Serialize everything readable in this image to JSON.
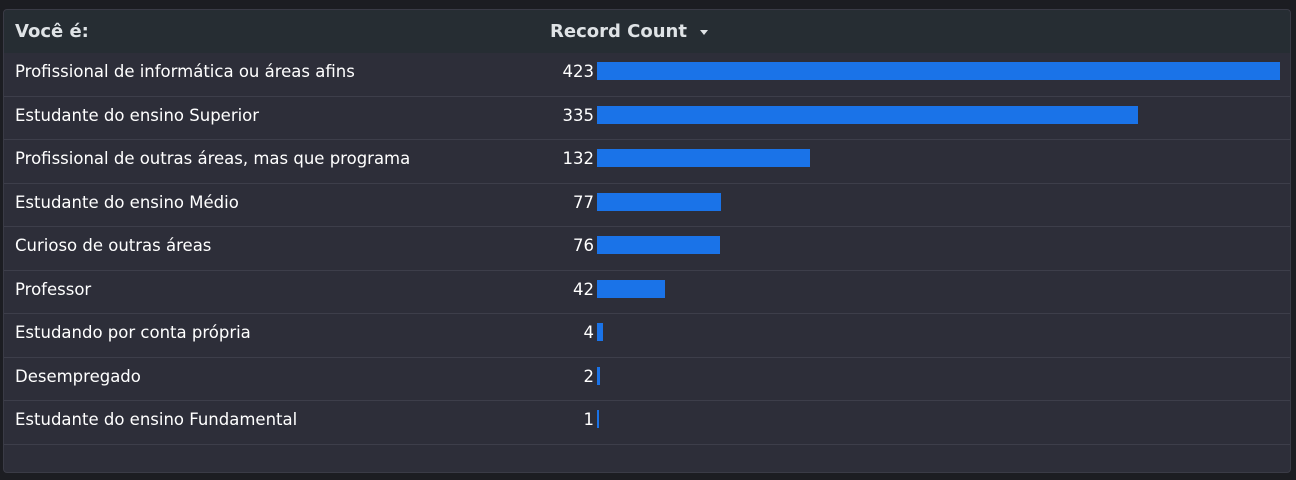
{
  "table": {
    "header": {
      "dimension_label": "Você é:",
      "metric_label": "Record Count",
      "sort_icon": "caret-down-icon"
    },
    "bar_color": "#1a73e8"
  },
  "chart_data": {
    "type": "table",
    "title": "",
    "columns": [
      "Você é:",
      "Record Count"
    ],
    "categories": [
      "Profissional de informática ou áreas afins",
      "Estudante do ensino Superior",
      "Profissional de outras áreas, mas que programa",
      "Estudante do ensino Médio",
      "Curioso de outras áreas",
      "Professor",
      "Estudando por conta própria",
      "Desempregado",
      "Estudante do ensino Fundamental"
    ],
    "values": [
      423,
      335,
      132,
      77,
      76,
      42,
      4,
      2,
      1
    ],
    "bar_max": 423,
    "sort": "descending"
  }
}
